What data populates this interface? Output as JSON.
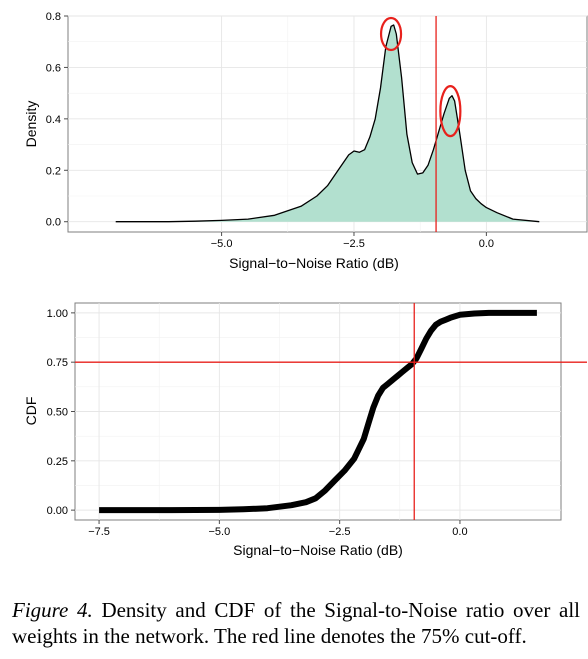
{
  "chart_data": [
    {
      "type": "area",
      "xlabel": "Signal−to−Noise Ratio (dB)",
      "ylabel": "Density",
      "xlim": [
        -7.9,
        1.9
      ],
      "ylim": [
        -0.04,
        0.8
      ],
      "xticks": [
        {
          "v": -5.0,
          "label": "−5.0"
        },
        {
          "v": -2.5,
          "label": "−2.5"
        },
        {
          "v": 0.0,
          "label": "0.0"
        }
      ],
      "yticks": [
        {
          "v": 0.0,
          "label": "0.0"
        },
        {
          "v": 0.2,
          "label": "0.2"
        },
        {
          "v": 0.4,
          "label": "0.4"
        },
        {
          "v": 0.6,
          "label": "0.6"
        },
        {
          "v": 0.8,
          "label": "0.8"
        }
      ],
      "grid": true,
      "fill_color": "#b2e0cf",
      "x": [
        -7.0,
        -6.0,
        -5.5,
        -5.0,
        -4.5,
        -4.0,
        -3.5,
        -3.2,
        -3.0,
        -2.8,
        -2.6,
        -2.5,
        -2.4,
        -2.3,
        -2.2,
        -2.1,
        -2.0,
        -1.9,
        -1.8,
        -1.75,
        -1.7,
        -1.6,
        -1.5,
        -1.4,
        -1.3,
        -1.2,
        -1.1,
        -1.0,
        -0.9,
        -0.8,
        -0.7,
        -0.65,
        -0.6,
        -0.5,
        -0.4,
        -0.3,
        -0.2,
        -0.1,
        0.0,
        0.2,
        0.5,
        1.0
      ],
      "y": [
        0.0,
        0.0,
        0.002,
        0.005,
        0.01,
        0.025,
        0.06,
        0.1,
        0.14,
        0.2,
        0.26,
        0.275,
        0.27,
        0.28,
        0.33,
        0.4,
        0.52,
        0.68,
        0.76,
        0.765,
        0.73,
        0.56,
        0.34,
        0.23,
        0.185,
        0.19,
        0.22,
        0.28,
        0.35,
        0.42,
        0.48,
        0.49,
        0.47,
        0.34,
        0.2,
        0.12,
        0.09,
        0.07,
        0.055,
        0.035,
        0.01,
        0.0
      ],
      "vline": -0.95,
      "vline_color": "#e8211c",
      "annotations": [
        {
          "shape": "ellipse",
          "x": -1.8,
          "y": 0.73
        },
        {
          "shape": "ellipse",
          "x": -0.68,
          "y": 0.43
        }
      ]
    },
    {
      "type": "line",
      "xlabel": "Signal−to−Noise Ratio (dB)",
      "ylabel": "CDF",
      "xlim": [
        -8.0,
        2.1
      ],
      "ylim": [
        -0.05,
        1.05
      ],
      "xticks": [
        {
          "v": -7.5,
          "label": "−7.5"
        },
        {
          "v": -5.0,
          "label": "−5.0"
        },
        {
          "v": -2.5,
          "label": "−2.5"
        },
        {
          "v": 0.0,
          "label": "0.0"
        }
      ],
      "yticks": [
        {
          "v": 0.0,
          "label": "0.00"
        },
        {
          "v": 0.25,
          "label": "0.25"
        },
        {
          "v": 0.5,
          "label": "0.50"
        },
        {
          "v": 0.75,
          "label": "0.75"
        },
        {
          "v": 1.0,
          "label": "1.00"
        }
      ],
      "grid": true,
      "x": [
        -7.5,
        -6.0,
        -5.0,
        -4.5,
        -4.0,
        -3.5,
        -3.2,
        -3.0,
        -2.8,
        -2.6,
        -2.4,
        -2.2,
        -2.0,
        -1.9,
        -1.8,
        -1.7,
        -1.6,
        -1.5,
        -1.4,
        -1.3,
        -1.2,
        -1.1,
        -1.0,
        -0.9,
        -0.8,
        -0.7,
        -0.6,
        -0.5,
        -0.4,
        -0.3,
        -0.2,
        0.0,
        0.3,
        0.6,
        1.0,
        1.6
      ],
      "y": [
        0.0,
        0.0,
        0.001,
        0.004,
        0.01,
        0.025,
        0.04,
        0.06,
        0.1,
        0.15,
        0.2,
        0.26,
        0.36,
        0.44,
        0.52,
        0.58,
        0.62,
        0.64,
        0.66,
        0.68,
        0.7,
        0.72,
        0.74,
        0.77,
        0.82,
        0.87,
        0.91,
        0.94,
        0.955,
        0.965,
        0.975,
        0.99,
        0.997,
        1.0,
        1.0,
        1.0
      ],
      "hline": 0.75,
      "vline": -0.95,
      "ref_color": "#e8211c"
    }
  ],
  "caption": {
    "label": "Figure 4.",
    "text": "Density and CDF of the Signal-to-Noise ratio over all weights in the network. The red line denotes the 75% cut-off."
  }
}
